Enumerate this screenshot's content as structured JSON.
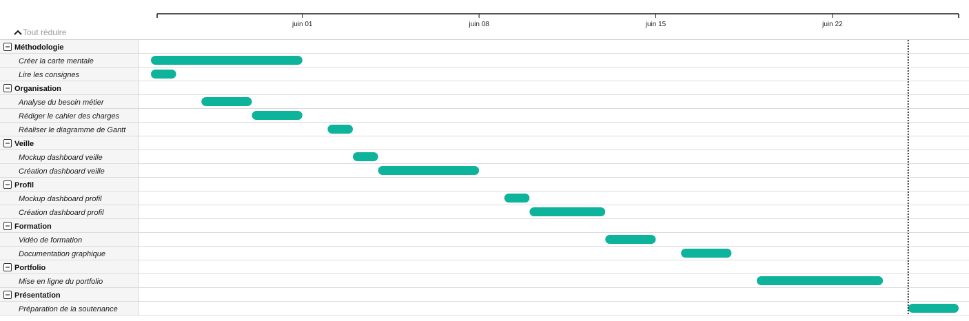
{
  "toolbar": {
    "collapse_all_label": "Tout réduire",
    "collapse_icon": "chevron-up-icon"
  },
  "chart_data": {
    "type": "gantt",
    "x_axis": {
      "ticks": [
        "juin 01",
        "juin 08",
        "juin 15",
        "juin 22"
      ],
      "range": [
        "2024-05-26",
        "2024-06-27"
      ]
    },
    "today_marker": "2024-06-25",
    "bar_color": "#0db39a",
    "groups": [
      {
        "name": "Méthodologie",
        "tasks": [
          {
            "name": "Créer la carte mentale",
            "start": "2024-05-26",
            "end": "2024-06-01"
          },
          {
            "name": "Lire les consignes",
            "start": "2024-05-26",
            "end": "2024-05-27"
          }
        ]
      },
      {
        "name": "Organisation",
        "tasks": [
          {
            "name": "Analyse du besoin métier",
            "start": "2024-05-28",
            "end": "2024-05-30"
          },
          {
            "name": "Rédiger le cahier des charges",
            "start": "2024-05-30",
            "end": "2024-06-01"
          },
          {
            "name": "Réaliser le diagramme de Gantt",
            "start": "2024-06-02",
            "end": "2024-06-03"
          }
        ]
      },
      {
        "name": "Veille",
        "tasks": [
          {
            "name": "Mockup dashboard veille",
            "start": "2024-06-03",
            "end": "2024-06-04"
          },
          {
            "name": "Création dashboard veille",
            "start": "2024-06-04",
            "end": "2024-06-08"
          }
        ]
      },
      {
        "name": "Profil",
        "tasks": [
          {
            "name": "Mockup dashboard profil",
            "start": "2024-06-09",
            "end": "2024-06-10"
          },
          {
            "name": "Création dashboard profil",
            "start": "2024-06-10",
            "end": "2024-06-13"
          }
        ]
      },
      {
        "name": "Formation",
        "tasks": [
          {
            "name": "Vidéo de formation",
            "start": "2024-06-13",
            "end": "2024-06-15"
          },
          {
            "name": "Documentation graphique",
            "start": "2024-06-16",
            "end": "2024-06-18"
          }
        ]
      },
      {
        "name": "Portfolio",
        "tasks": [
          {
            "name": "Mise en ligne du portfolio",
            "start": "2024-06-19",
            "end": "2024-06-24"
          }
        ]
      },
      {
        "name": "Présentation",
        "tasks": [
          {
            "name": "Préparation de la soutenance",
            "start": "2024-06-25",
            "end": "2024-06-27"
          }
        ]
      }
    ]
  }
}
